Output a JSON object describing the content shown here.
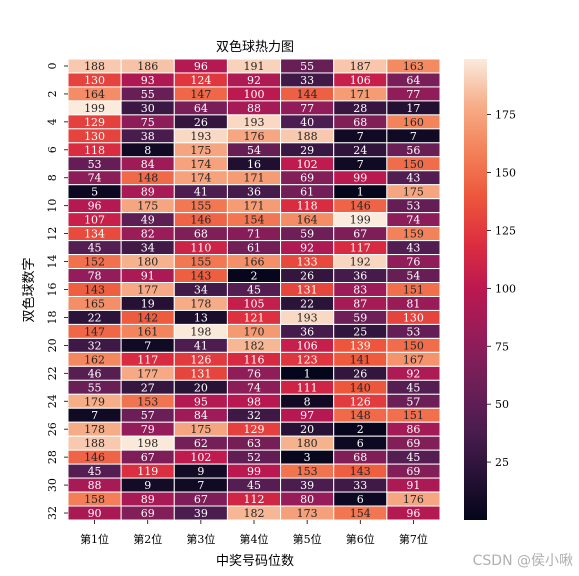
{
  "chart_data": {
    "type": "heatmap",
    "title": "双色球热力图",
    "xlabel": "中奖号码位数",
    "ylabel": "双色球数字",
    "columns": [
      "第1位",
      "第2位",
      "第3位",
      "第4位",
      "第5位",
      "第6位",
      "第7位"
    ],
    "row_labels": [
      "0",
      "2",
      "4",
      "6",
      "8",
      "10",
      "12",
      "14",
      "16",
      "18",
      "20",
      "22",
      "24",
      "26",
      "28",
      "30",
      "32"
    ],
    "colorbar_ticks": [
      25,
      50,
      75,
      100,
      125,
      150,
      175
    ],
    "vmin": 0,
    "vmax": 199,
    "colormap": "rocket",
    "values": [
      [
        188,
        186,
        96,
        191,
        55,
        187,
        163
      ],
      [
        130,
        93,
        124,
        92,
        33,
        106,
        64
      ],
      [
        164,
        55,
        147,
        100,
        144,
        171,
        77
      ],
      [
        199,
        30,
        64,
        88,
        77,
        28,
        17
      ],
      [
        129,
        75,
        26,
        193,
        40,
        68,
        160
      ],
      [
        130,
        38,
        193,
        176,
        188,
        7,
        7
      ],
      [
        118,
        8,
        175,
        54,
        29,
        24,
        56
      ],
      [
        53,
        84,
        174,
        16,
        102,
        7,
        150
      ],
      [
        74,
        148,
        174,
        171,
        69,
        99,
        43
      ],
      [
        5,
        89,
        41,
        36,
        61,
        1,
        175
      ],
      [
        96,
        175,
        155,
        171,
        118,
        146,
        53
      ],
      [
        107,
        49,
        146,
        154,
        164,
        199,
        74
      ],
      [
        134,
        82,
        68,
        71,
        59,
        67,
        159
      ],
      [
        45,
        34,
        110,
        61,
        92,
        117,
        43
      ],
      [
        152,
        180,
        155,
        166,
        133,
        192,
        76
      ],
      [
        78,
        91,
        143,
        2,
        26,
        36,
        54
      ],
      [
        143,
        177,
        34,
        45,
        131,
        83,
        151
      ],
      [
        165,
        19,
        178,
        105,
        22,
        87,
        81
      ],
      [
        22,
        142,
        13,
        121,
        193,
        59,
        130
      ],
      [
        147,
        161,
        198,
        170,
        36,
        25,
        53
      ],
      [
        32,
        7,
        41,
        182,
        106,
        139,
        150
      ],
      [
        162,
        117,
        126,
        116,
        123,
        141,
        167
      ],
      [
        46,
        177,
        131,
        76,
        1,
        26,
        92
      ],
      [
        55,
        27,
        20,
        74,
        111,
        140,
        45
      ],
      [
        179,
        153,
        95,
        98,
        8,
        126,
        57
      ],
      [
        7,
        57,
        84,
        32,
        97,
        148,
        151
      ],
      [
        178,
        79,
        175,
        129,
        20,
        2,
        86
      ],
      [
        188,
        198,
        62,
        63,
        180,
        6,
        69
      ],
      [
        146,
        67,
        102,
        52,
        3,
        68,
        45
      ],
      [
        45,
        119,
        9,
        99,
        153,
        143,
        69
      ],
      [
        88,
        9,
        7,
        45,
        39,
        33,
        91
      ],
      [
        158,
        89,
        67,
        112,
        80,
        6,
        176
      ],
      [
        90,
        69,
        39,
        182,
        173,
        154,
        96
      ]
    ]
  },
  "watermark": "CSDN @侯小啾"
}
